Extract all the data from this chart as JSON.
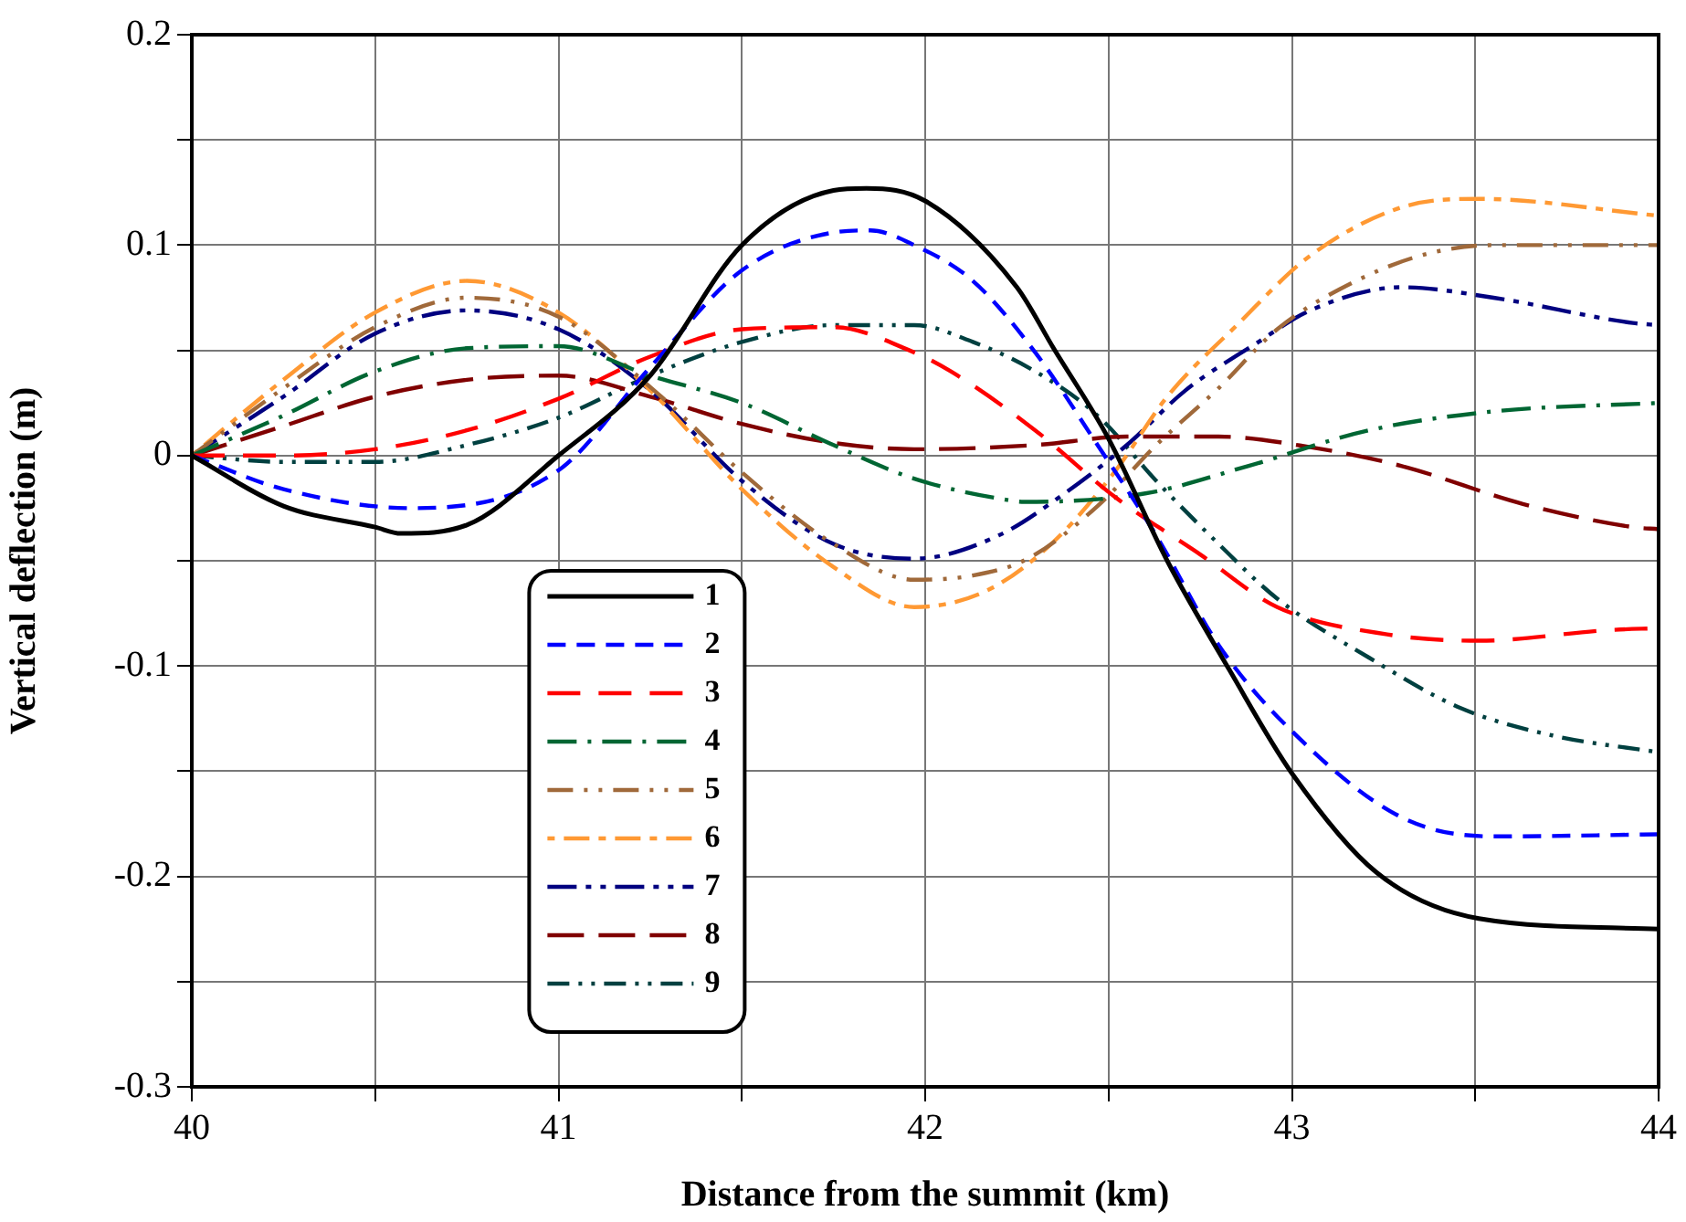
{
  "chart_data": {
    "type": "line",
    "xlabel": "Distance from the summit (km)",
    "ylabel": "Vertical deflection (m)",
    "xlim": [
      40,
      44
    ],
    "ylim": [
      -0.3,
      0.2
    ],
    "xticks": [
      40,
      {
        "value": 40.5,
        "label": null
      },
      41,
      {
        "value": 41.5,
        "label": null
      },
      42,
      {
        "value": 42.5,
        "label": null
      },
      43,
      {
        "value": 43.5,
        "label": null
      },
      44
    ],
    "yticks": [
      -0.3,
      {
        "value": -0.25,
        "label": null
      },
      -0.2,
      {
        "value": -0.15,
        "label": null
      },
      -0.1,
      {
        "value": -0.05,
        "label": null
      },
      0,
      {
        "value": 0.05,
        "label": null
      },
      0.1,
      {
        "value": 0.15,
        "label": null
      },
      0.2
    ],
    "grid": true,
    "legend": "bottom left",
    "marker": "none",
    "series": [
      {
        "name": "1",
        "color": "#000000",
        "line_style": "solid",
        "x": [
          40,
          40.25,
          40.5,
          40.57,
          40.75,
          41,
          41.25,
          41.5,
          41.75,
          41.84,
          42,
          42.25,
          42.35,
          42.5,
          42.66,
          42.83,
          43,
          43.23,
          43.51,
          44
        ],
        "values": [
          0,
          -0.024,
          -0.034,
          -0.037,
          -0.033,
          0,
          0.038,
          0.1,
          0.126,
          0.127,
          0.121,
          0.08,
          0.051,
          0.008,
          -0.05,
          -0.102,
          -0.151,
          -0.198,
          -0.22,
          -0.225
        ]
      },
      {
        "name": "2",
        "color": "#0000ff",
        "line_style": "dashed",
        "x": [
          40,
          40.25,
          40.6,
          41,
          41.25,
          41.5,
          41.75,
          41.85,
          41.97,
          42.13,
          42.3,
          42.47,
          42.63,
          42.8,
          43,
          43.3,
          43.55,
          44
        ],
        "values": [
          0,
          -0.016,
          -0.025,
          -0.007,
          0.042,
          0.088,
          0.106,
          0.107,
          0.1,
          0.083,
          0.049,
          0.005,
          -0.038,
          -0.09,
          -0.131,
          -0.172,
          -0.181,
          -0.18
        ]
      },
      {
        "name": "3",
        "color": "#ff0000",
        "line_style": "dashed",
        "x": [
          40,
          40.25,
          40.5,
          40.75,
          41,
          41.25,
          41.5,
          41.75,
          41.97,
          42.07,
          42.3,
          42.52,
          42.75,
          42.96,
          43.26,
          43.51,
          43.86,
          44
        ],
        "values": [
          0,
          0,
          0.003,
          0.012,
          0.027,
          0.047,
          0.06,
          0.061,
          0.049,
          0.04,
          0.012,
          -0.02,
          -0.047,
          -0.072,
          -0.085,
          -0.088,
          -0.083,
          -0.082
        ]
      },
      {
        "name": "4",
        "color": "#006633",
        "line_style": "dashed",
        "x": [
          40,
          40.25,
          40.5,
          40.75,
          41,
          41.25,
          41.5,
          41.75,
          41.97,
          42.22,
          42.27,
          42.6,
          42.88,
          43.21,
          43.55,
          44
        ],
        "values": [
          0,
          0.019,
          0.04,
          0.051,
          0.052,
          0.038,
          0.025,
          0.005,
          -0.011,
          -0.021,
          -0.022,
          -0.018,
          -0.005,
          0.012,
          0.021,
          0.025
        ]
      },
      {
        "name": "5",
        "color": "#a0693a",
        "line_style": "dashed",
        "x": [
          40,
          40.25,
          40.5,
          40.75,
          41,
          41.28,
          41.5,
          41.75,
          41.97,
          42.13,
          42.28,
          42.47,
          42.63,
          42.8,
          42.96,
          43.13,
          43.35,
          43.55,
          44
        ],
        "values": [
          0,
          0.032,
          0.061,
          0.075,
          0.066,
          0.028,
          -0.008,
          -0.042,
          -0.059,
          -0.057,
          -0.049,
          -0.024,
          0.005,
          0.032,
          0.06,
          0.079,
          0.095,
          0.1,
          0.1
        ]
      },
      {
        "name": "6",
        "color": "#ff9933",
        "line_style": "dashed",
        "x": [
          40,
          40.25,
          40.5,
          40.75,
          41,
          41.25,
          41.5,
          41.75,
          41.97,
          42.17,
          42.35,
          42.52,
          42.66,
          42.85,
          43.05,
          43.3,
          43.51,
          44
        ],
        "values": [
          0,
          0.036,
          0.068,
          0.083,
          0.068,
          0.031,
          -0.016,
          -0.053,
          -0.072,
          -0.064,
          -0.041,
          -0.007,
          0.028,
          0.062,
          0.095,
          0.118,
          0.122,
          0.114
        ]
      },
      {
        "name": "7",
        "color": "#000080",
        "line_style": "dashed",
        "x": [
          40,
          40.25,
          40.5,
          40.75,
          41,
          41.25,
          41.5,
          41.75,
          41.97,
          42.2,
          42.38,
          42.55,
          42.71,
          42.9,
          43.05,
          43.3,
          43.55,
          43.93,
          44
        ],
        "values": [
          0,
          0.028,
          0.058,
          0.069,
          0.06,
          0.031,
          -0.012,
          -0.042,
          -0.049,
          -0.038,
          -0.018,
          0.005,
          0.031,
          0.053,
          0.069,
          0.08,
          0.075,
          0.063,
          0.062
        ]
      },
      {
        "name": "8",
        "color": "#800000",
        "line_style": "dashed",
        "x": [
          40,
          40.25,
          40.5,
          40.75,
          41,
          41.25,
          41.5,
          41.75,
          41.97,
          42.3,
          42.55,
          42.8,
          43.05,
          43.3,
          43.63,
          43.93,
          44
        ],
        "values": [
          0,
          0.014,
          0.028,
          0.036,
          0.038,
          0.028,
          0.015,
          0.006,
          0.003,
          0.005,
          0.009,
          0.009,
          0.004,
          -0.005,
          -0.023,
          -0.034,
          -0.035
        ]
      },
      {
        "name": "9",
        "color": "#004040",
        "line_style": "dashed",
        "x": [
          40,
          40.25,
          40.5,
          40.75,
          41,
          41.25,
          41.5,
          41.75,
          41.97,
          42.13,
          42.3,
          42.47,
          42.63,
          42.8,
          42.96,
          43.21,
          43.46,
          43.71,
          44
        ],
        "values": [
          0,
          -0.003,
          -0.003,
          0.005,
          0.018,
          0.038,
          0.054,
          0.062,
          0.062,
          0.054,
          0.04,
          0.019,
          -0.012,
          -0.042,
          -0.068,
          -0.096,
          -0.12,
          -0.133,
          -0.141
        ]
      }
    ]
  }
}
